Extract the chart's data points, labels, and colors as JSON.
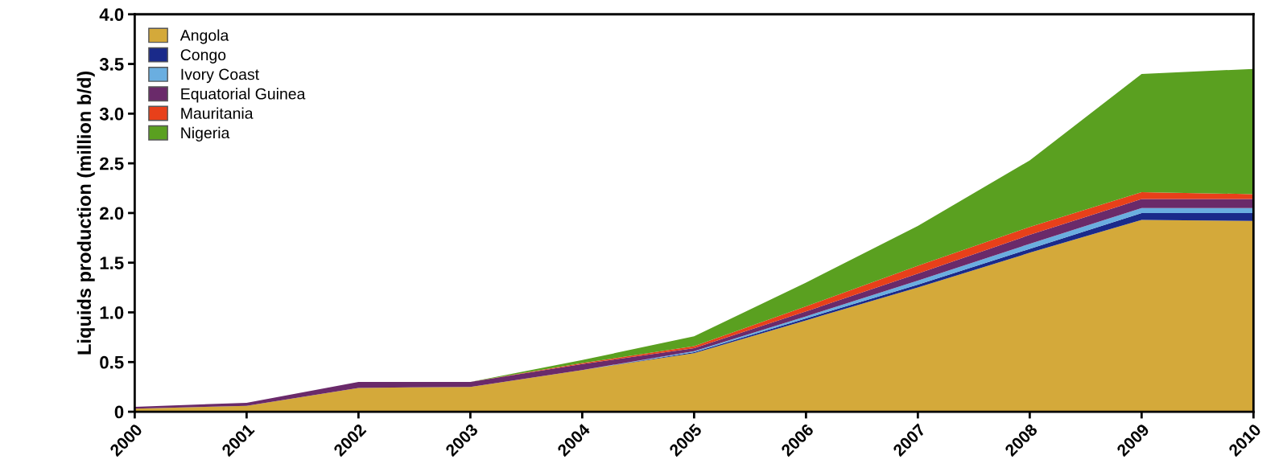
{
  "chart_data": {
    "type": "area",
    "stacked": true,
    "ylabel": "Liquids production (million b/d)",
    "x": [
      2000,
      2001,
      2002,
      2003,
      2004,
      2005,
      2006,
      2007,
      2008,
      2009,
      2010
    ],
    "xlim": [
      2000,
      2010
    ],
    "xticks": [
      2000,
      2001,
      2002,
      2003,
      2004,
      2005,
      2006,
      2007,
      2008,
      2009,
      2010
    ],
    "ylim": [
      0,
      4
    ],
    "yticks": [
      0,
      {
        "value": 0.5,
        "label": "0.5"
      },
      {
        "value": 1,
        "label": "1.0"
      },
      {
        "value": 1.5,
        "label": "1.5"
      },
      {
        "value": 2,
        "label": "2.0"
      },
      {
        "value": 2.5,
        "label": "2.5"
      },
      {
        "value": 3,
        "label": "3.0"
      },
      {
        "value": 3.5,
        "label": "3.5"
      },
      {
        "value": 4,
        "label": "4.0"
      }
    ],
    "grid": false,
    "legend": "top left",
    "series": [
      {
        "name": "Angola",
        "color": "#d4a93a",
        "values": [
          0.03,
          0.06,
          0.24,
          0.25,
          0.42,
          0.59,
          0.92,
          1.25,
          1.6,
          1.93,
          1.92
        ]
      },
      {
        "name": "Congo",
        "color": "#1a2a8a",
        "values": [
          0,
          0,
          0,
          0,
          0,
          0.01,
          0.02,
          0.03,
          0.04,
          0.07,
          0.08
        ]
      },
      {
        "name": "Ivory Coast",
        "color": "#6aaee0",
        "values": [
          0,
          0,
          0,
          0,
          0,
          0.01,
          0.02,
          0.04,
          0.05,
          0.05,
          0.05
        ]
      },
      {
        "name": "Equatorial Guinea",
        "color": "#6a2a6a",
        "values": [
          0.02,
          0.03,
          0.06,
          0.05,
          0.06,
          0.03,
          0.05,
          0.07,
          0.09,
          0.09,
          0.09
        ]
      },
      {
        "name": "Mauritania",
        "color": "#e8401a",
        "values": [
          0,
          0,
          0,
          0,
          0.01,
          0.02,
          0.05,
          0.08,
          0.08,
          0.07,
          0.05
        ]
      },
      {
        "name": "Nigeria",
        "color": "#5aa020",
        "values": [
          0,
          0,
          0,
          0,
          0.03,
          0.1,
          0.24,
          0.4,
          0.67,
          1.19,
          1.26
        ]
      }
    ]
  }
}
